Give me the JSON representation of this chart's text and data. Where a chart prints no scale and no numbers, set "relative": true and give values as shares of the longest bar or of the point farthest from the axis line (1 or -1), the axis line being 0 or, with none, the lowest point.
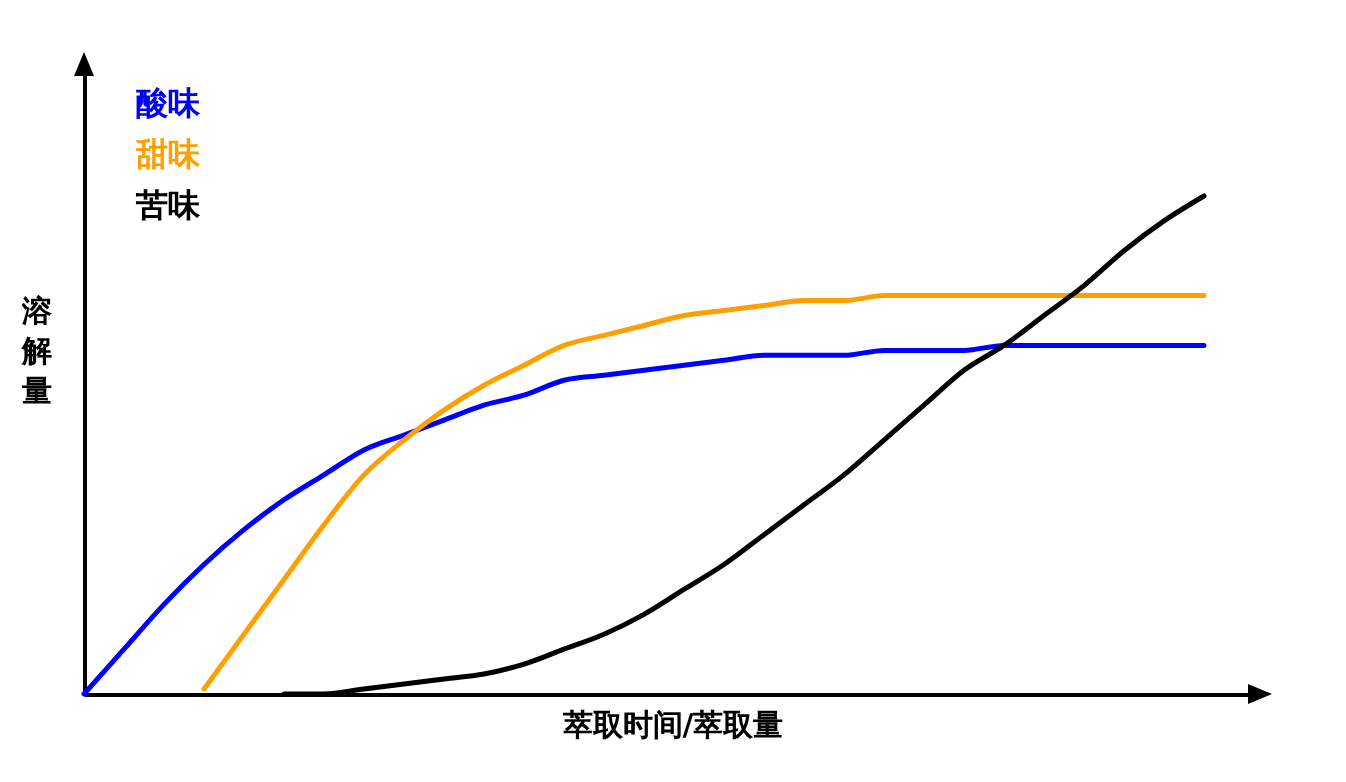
{
  "chart_data": {
    "type": "line",
    "relative": true,
    "xlabel": "萃取时间/萃取量",
    "ylabel": "溶解量",
    "legend": "top left",
    "marker": "none",
    "line_style": "solid",
    "grid": false,
    "categories": [
      null,
      null,
      null,
      null,
      null,
      null,
      null,
      null,
      null,
      null,
      null,
      null,
      null,
      null,
      null,
      null,
      null,
      null,
      null,
      null,
      null,
      null,
      null,
      null,
      null,
      null,
      null,
      null,
      null
    ],
    "series": [
      {
        "name": "酸味",
        "color": "#0000ff",
        "values": [
          0,
          0.09,
          0.18,
          0.26,
          0.33,
          0.39,
          0.44,
          0.49,
          0.52,
          0.55,
          0.58,
          0.6,
          0.63,
          0.64,
          0.65,
          0.66,
          0.67,
          0.68,
          0.68,
          0.68,
          0.69,
          0.69,
          0.69,
          0.7,
          0.7,
          0.7,
          0.7,
          0.7,
          0.7
        ]
      },
      {
        "name": "甜味",
        "color": "#ffa000",
        "values": [
          null,
          null,
          null,
          0.01,
          0.12,
          0.23,
          0.34,
          0.44,
          0.51,
          0.57,
          0.62,
          0.66,
          0.7,
          0.72,
          0.74,
          0.76,
          0.77,
          0.78,
          0.79,
          0.79,
          0.8,
          0.8,
          0.8,
          0.8,
          0.8,
          0.8,
          0.8,
          0.8,
          0.8
        ]
      },
      {
        "name": "苦味",
        "color": "#000000",
        "values": [
          null,
          null,
          null,
          null,
          null,
          0,
          0,
          0.01,
          0.02,
          0.03,
          0.04,
          0.06,
          0.09,
          0.12,
          0.16,
          0.21,
          0.26,
          0.32,
          0.38,
          0.44,
          0.51,
          0.58,
          0.65,
          0.7,
          0.76,
          0.82,
          0.89,
          0.95,
          1
        ]
      }
    ]
  }
}
